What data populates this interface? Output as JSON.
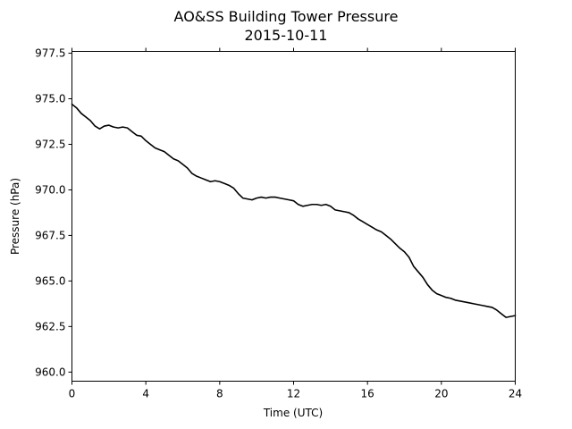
{
  "chart_data": {
    "type": "line",
    "title": "AO&SS Building Tower Pressure",
    "subtitle": "2015-10-11",
    "xlabel": "Time (UTC)",
    "ylabel": "Pressure (hPa)",
    "xlim": [
      0,
      24
    ],
    "ylim": [
      959.5,
      977.6
    ],
    "xticks": [
      0,
      4,
      8,
      12,
      16,
      20,
      24
    ],
    "xtick_labels": [
      "0",
      "4",
      "8",
      "12",
      "16",
      "20",
      "24"
    ],
    "yticks": [
      960.0,
      962.5,
      965.0,
      967.5,
      970.0,
      972.5,
      975.0,
      977.5
    ],
    "ytick_labels": [
      "960.0",
      "962.5",
      "965.0",
      "967.5",
      "970.0",
      "972.5",
      "975.0",
      "977.5"
    ],
    "grid": false,
    "line_color": "#000000",
    "series": [
      {
        "x": [
          0,
          0.25,
          0.5,
          0.75,
          1.0,
          1.25,
          1.5,
          1.75,
          2.0,
          2.25,
          2.5,
          2.75,
          3.0,
          3.25,
          3.5,
          3.75,
          4.0,
          4.25,
          4.5,
          4.75,
          5.0,
          5.25,
          5.5,
          5.75,
          6.0,
          6.25,
          6.5,
          6.75,
          7.0,
          7.25,
          7.5,
          7.75,
          8.0,
          8.25,
          8.5,
          8.75,
          9.0,
          9.25,
          9.5,
          9.75,
          10.0,
          10.25,
          10.5,
          10.75,
          11.0,
          11.25,
          11.5,
          11.75,
          12.0,
          12.25,
          12.5,
          12.75,
          13.0,
          13.25,
          13.5,
          13.75,
          14.0,
          14.25,
          14.5,
          14.75,
          15.0,
          15.25,
          15.5,
          15.75,
          16.0,
          16.25,
          16.5,
          16.75,
          17.0,
          17.25,
          17.5,
          17.75,
          18.0,
          18.25,
          18.5,
          18.75,
          19.0,
          19.25,
          19.5,
          19.75,
          20.0,
          20.25,
          20.5,
          20.75,
          21.0,
          21.25,
          21.5,
          21.75,
          22.0,
          22.25,
          22.5,
          22.75,
          23.0,
          23.25,
          23.5,
          23.75,
          24.0
        ],
        "values": [
          974.7,
          974.5,
          974.2,
          974.0,
          973.8,
          973.5,
          973.35,
          973.5,
          973.55,
          973.45,
          973.4,
          973.45,
          973.4,
          973.2,
          973.0,
          972.95,
          972.7,
          972.5,
          972.3,
          972.2,
          972.1,
          971.9,
          971.7,
          971.6,
          971.4,
          971.2,
          970.9,
          970.75,
          970.65,
          970.55,
          970.45,
          970.5,
          970.45,
          970.35,
          970.25,
          970.1,
          969.8,
          969.55,
          969.5,
          969.45,
          969.55,
          969.6,
          969.55,
          969.6,
          969.6,
          969.55,
          969.5,
          969.45,
          969.4,
          969.2,
          969.1,
          969.15,
          969.2,
          969.2,
          969.15,
          969.2,
          969.1,
          968.9,
          968.85,
          968.8,
          968.75,
          968.6,
          968.4,
          968.25,
          968.1,
          967.95,
          967.8,
          967.7,
          967.5,
          967.3,
          967.05,
          966.8,
          966.6,
          966.3,
          965.8,
          965.5,
          965.2,
          964.8,
          964.5,
          964.3,
          964.2,
          964.1,
          964.05,
          963.95,
          963.9,
          963.85,
          963.8,
          963.75,
          963.7,
          963.65,
          963.6,
          963.55,
          963.4,
          963.2,
          963.0,
          963.05,
          963.1
        ]
      }
    ]
  }
}
